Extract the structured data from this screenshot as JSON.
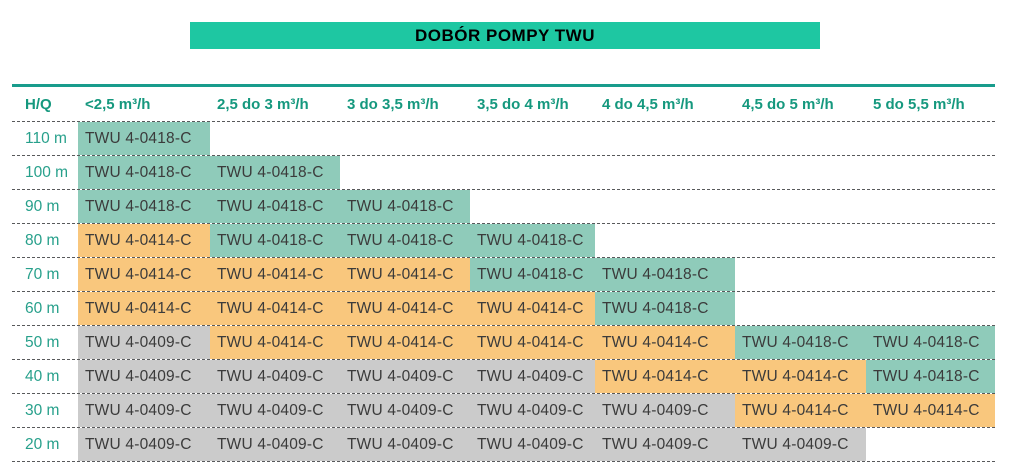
{
  "title": "DOBÓR POMPY TWU",
  "colors": {
    "title_bg": "#1EC7A2",
    "rule": "#189C8C",
    "divider": "#58595b",
    "header_text": "#15987E",
    "row_label_text": "#27A08B",
    "cell_text": "#3B3B3B",
    "teal": "#8FCBBA",
    "orange": "#F9C77D",
    "gray": "#CBCBCB"
  },
  "table": {
    "corner_label": "H/Q",
    "columns": [
      "<2,5 m³/h",
      "2,5 do 3 m³/h",
      "3 do 3,5 m³/h",
      "3,5 do 4 m³/h",
      "4 do 4,5 m³/h",
      "4,5 do 5 m³/h",
      "5 do 5,5 m³/h"
    ],
    "rows": [
      {
        "label": "110 m",
        "cells": [
          {
            "model": "TWU 4-0418-C",
            "color": "teal"
          }
        ]
      },
      {
        "label": "100 m",
        "cells": [
          {
            "model": "TWU 4-0418-C",
            "color": "teal"
          },
          {
            "model": "TWU 4-0418-C",
            "color": "teal"
          }
        ]
      },
      {
        "label": "90 m",
        "cells": [
          {
            "model": "TWU 4-0418-C",
            "color": "teal"
          },
          {
            "model": "TWU 4-0418-C",
            "color": "teal"
          },
          {
            "model": "TWU 4-0418-C",
            "color": "teal"
          }
        ]
      },
      {
        "label": "80 m",
        "cells": [
          {
            "model": "TWU 4-0414-C",
            "color": "orange"
          },
          {
            "model": "TWU 4-0418-C",
            "color": "teal"
          },
          {
            "model": "TWU 4-0418-C",
            "color": "teal"
          },
          {
            "model": "TWU 4-0418-C",
            "color": "teal"
          }
        ]
      },
      {
        "label": "70 m",
        "cells": [
          {
            "model": "TWU 4-0414-C",
            "color": "orange"
          },
          {
            "model": "TWU 4-0414-C",
            "color": "orange"
          },
          {
            "model": "TWU 4-0414-C",
            "color": "orange"
          },
          {
            "model": "TWU 4-0418-C",
            "color": "teal"
          },
          {
            "model": "TWU 4-0418-C",
            "color": "teal"
          }
        ]
      },
      {
        "label": "60 m",
        "cells": [
          {
            "model": "TWU 4-0414-C",
            "color": "orange"
          },
          {
            "model": "TWU 4-0414-C",
            "color": "orange"
          },
          {
            "model": "TWU 4-0414-C",
            "color": "orange"
          },
          {
            "model": "TWU 4-0414-C",
            "color": "orange"
          },
          {
            "model": "TWU 4-0418-C",
            "color": "teal"
          }
        ]
      },
      {
        "label": "50 m",
        "cells": [
          {
            "model": "TWU 4-0409-C",
            "color": "gray"
          },
          {
            "model": "TWU 4-0414-C",
            "color": "orange"
          },
          {
            "model": "TWU 4-0414-C",
            "color": "orange"
          },
          {
            "model": "TWU 4-0414-C",
            "color": "orange"
          },
          {
            "model": "TWU 4-0414-C",
            "color": "orange"
          },
          {
            "model": "TWU 4-0418-C",
            "color": "teal"
          },
          {
            "model": "TWU 4-0418-C",
            "color": "teal"
          }
        ]
      },
      {
        "label": "40 m",
        "cells": [
          {
            "model": "TWU 4-0409-C",
            "color": "gray"
          },
          {
            "model": "TWU 4-0409-C",
            "color": "gray"
          },
          {
            "model": "TWU 4-0409-C",
            "color": "gray"
          },
          {
            "model": "TWU 4-0409-C",
            "color": "gray"
          },
          {
            "model": "TWU 4-0414-C",
            "color": "orange"
          },
          {
            "model": "TWU 4-0414-C",
            "color": "orange"
          },
          {
            "model": "TWU 4-0418-C",
            "color": "teal"
          }
        ]
      },
      {
        "label": "30 m",
        "cells": [
          {
            "model": "TWU 4-0409-C",
            "color": "gray"
          },
          {
            "model": "TWU 4-0409-C",
            "color": "gray"
          },
          {
            "model": "TWU 4-0409-C",
            "color": "gray"
          },
          {
            "model": "TWU 4-0409-C",
            "color": "gray"
          },
          {
            "model": "TWU 4-0409-C",
            "color": "gray"
          },
          {
            "model": "TWU 4-0414-C",
            "color": "orange"
          },
          {
            "model": "TWU 4-0414-C",
            "color": "orange"
          }
        ]
      },
      {
        "label": "20 m",
        "cells": [
          {
            "model": "TWU 4-0409-C",
            "color": "gray"
          },
          {
            "model": "TWU 4-0409-C",
            "color": "gray"
          },
          {
            "model": "TWU 4-0409-C",
            "color": "gray"
          },
          {
            "model": "TWU 4-0409-C",
            "color": "gray"
          },
          {
            "model": "TWU 4-0409-C",
            "color": "gray"
          },
          {
            "model": "TWU 4-0409-C",
            "color": "gray"
          }
        ]
      }
    ]
  }
}
